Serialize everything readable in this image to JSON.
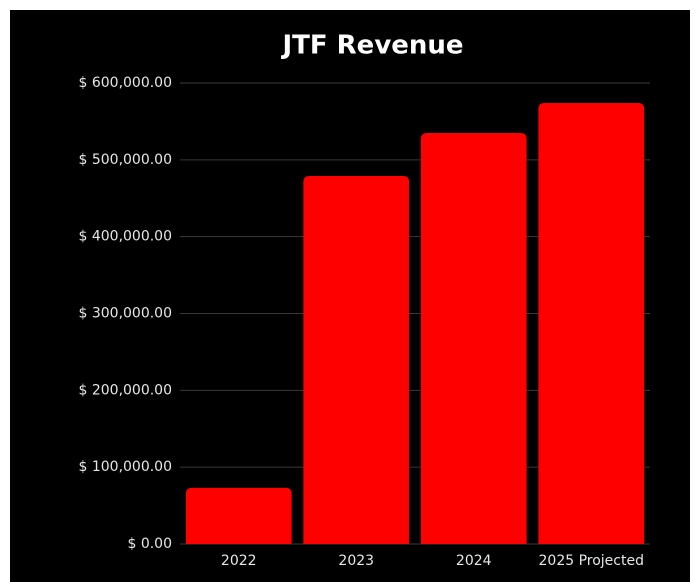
{
  "chart_data": {
    "type": "bar",
    "title": "JTF Revenue",
    "categories": [
      "2022",
      "2023",
      "2024",
      "2025 Projected"
    ],
    "values": [
      73000,
      479000,
      535000,
      574000
    ],
    "color": "#ff0000",
    "ylim": [
      0,
      600000
    ],
    "yticks": [
      {
        "value": 0,
        "label": "$ 0.00"
      },
      {
        "value": 100000,
        "label": "$ 100,000.00"
      },
      {
        "value": 200000,
        "label": "$ 200,000.00"
      },
      {
        "value": 300000,
        "label": "$ 300,000.00"
      },
      {
        "value": 400000,
        "label": "$ 400,000.00"
      },
      {
        "value": 500000,
        "label": "$ 500,000.00"
      },
      {
        "value": 600000,
        "label": "$ 600,000.00"
      }
    ],
    "grid": true
  }
}
